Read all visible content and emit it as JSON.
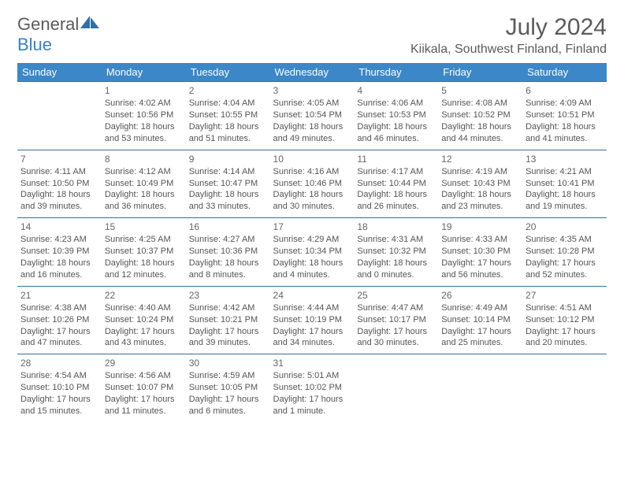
{
  "logo": {
    "general": "General",
    "blue": "Blue"
  },
  "title": "July 2024",
  "location": "Kiikala, Southwest Finland, Finland",
  "colors": {
    "header_bg": "#3c87c7",
    "header_text": "#ffffff",
    "border": "#3c6d9c",
    "body_text": "#555555",
    "title_text": "#5b5b5b",
    "logo_blue": "#3b82c4"
  },
  "dayHeaders": [
    "Sunday",
    "Monday",
    "Tuesday",
    "Wednesday",
    "Thursday",
    "Friday",
    "Saturday"
  ],
  "weeks": [
    [
      null,
      {
        "n": "1",
        "sr": "4:02 AM",
        "ss": "10:56 PM",
        "dl": "18 hours and 53 minutes."
      },
      {
        "n": "2",
        "sr": "4:04 AM",
        "ss": "10:55 PM",
        "dl": "18 hours and 51 minutes."
      },
      {
        "n": "3",
        "sr": "4:05 AM",
        "ss": "10:54 PM",
        "dl": "18 hours and 49 minutes."
      },
      {
        "n": "4",
        "sr": "4:06 AM",
        "ss": "10:53 PM",
        "dl": "18 hours and 46 minutes."
      },
      {
        "n": "5",
        "sr": "4:08 AM",
        "ss": "10:52 PM",
        "dl": "18 hours and 44 minutes."
      },
      {
        "n": "6",
        "sr": "4:09 AM",
        "ss": "10:51 PM",
        "dl": "18 hours and 41 minutes."
      }
    ],
    [
      {
        "n": "7",
        "sr": "4:11 AM",
        "ss": "10:50 PM",
        "dl": "18 hours and 39 minutes."
      },
      {
        "n": "8",
        "sr": "4:12 AM",
        "ss": "10:49 PM",
        "dl": "18 hours and 36 minutes."
      },
      {
        "n": "9",
        "sr": "4:14 AM",
        "ss": "10:47 PM",
        "dl": "18 hours and 33 minutes."
      },
      {
        "n": "10",
        "sr": "4:16 AM",
        "ss": "10:46 PM",
        "dl": "18 hours and 30 minutes."
      },
      {
        "n": "11",
        "sr": "4:17 AM",
        "ss": "10:44 PM",
        "dl": "18 hours and 26 minutes."
      },
      {
        "n": "12",
        "sr": "4:19 AM",
        "ss": "10:43 PM",
        "dl": "18 hours and 23 minutes."
      },
      {
        "n": "13",
        "sr": "4:21 AM",
        "ss": "10:41 PM",
        "dl": "18 hours and 19 minutes."
      }
    ],
    [
      {
        "n": "14",
        "sr": "4:23 AM",
        "ss": "10:39 PM",
        "dl": "18 hours and 16 minutes."
      },
      {
        "n": "15",
        "sr": "4:25 AM",
        "ss": "10:37 PM",
        "dl": "18 hours and 12 minutes."
      },
      {
        "n": "16",
        "sr": "4:27 AM",
        "ss": "10:36 PM",
        "dl": "18 hours and 8 minutes."
      },
      {
        "n": "17",
        "sr": "4:29 AM",
        "ss": "10:34 PM",
        "dl": "18 hours and 4 minutes."
      },
      {
        "n": "18",
        "sr": "4:31 AM",
        "ss": "10:32 PM",
        "dl": "18 hours and 0 minutes."
      },
      {
        "n": "19",
        "sr": "4:33 AM",
        "ss": "10:30 PM",
        "dl": "17 hours and 56 minutes."
      },
      {
        "n": "20",
        "sr": "4:35 AM",
        "ss": "10:28 PM",
        "dl": "17 hours and 52 minutes."
      }
    ],
    [
      {
        "n": "21",
        "sr": "4:38 AM",
        "ss": "10:26 PM",
        "dl": "17 hours and 47 minutes."
      },
      {
        "n": "22",
        "sr": "4:40 AM",
        "ss": "10:24 PM",
        "dl": "17 hours and 43 minutes."
      },
      {
        "n": "23",
        "sr": "4:42 AM",
        "ss": "10:21 PM",
        "dl": "17 hours and 39 minutes."
      },
      {
        "n": "24",
        "sr": "4:44 AM",
        "ss": "10:19 PM",
        "dl": "17 hours and 34 minutes."
      },
      {
        "n": "25",
        "sr": "4:47 AM",
        "ss": "10:17 PM",
        "dl": "17 hours and 30 minutes."
      },
      {
        "n": "26",
        "sr": "4:49 AM",
        "ss": "10:14 PM",
        "dl": "17 hours and 25 minutes."
      },
      {
        "n": "27",
        "sr": "4:51 AM",
        "ss": "10:12 PM",
        "dl": "17 hours and 20 minutes."
      }
    ],
    [
      {
        "n": "28",
        "sr": "4:54 AM",
        "ss": "10:10 PM",
        "dl": "17 hours and 15 minutes."
      },
      {
        "n": "29",
        "sr": "4:56 AM",
        "ss": "10:07 PM",
        "dl": "17 hours and 11 minutes."
      },
      {
        "n": "30",
        "sr": "4:59 AM",
        "ss": "10:05 PM",
        "dl": "17 hours and 6 minutes."
      },
      {
        "n": "31",
        "sr": "5:01 AM",
        "ss": "10:02 PM",
        "dl": "17 hours and 1 minute."
      },
      null,
      null,
      null
    ]
  ],
  "labels": {
    "sunrise": "Sunrise: ",
    "sunset": "Sunset: ",
    "daylight": "Daylight: "
  }
}
